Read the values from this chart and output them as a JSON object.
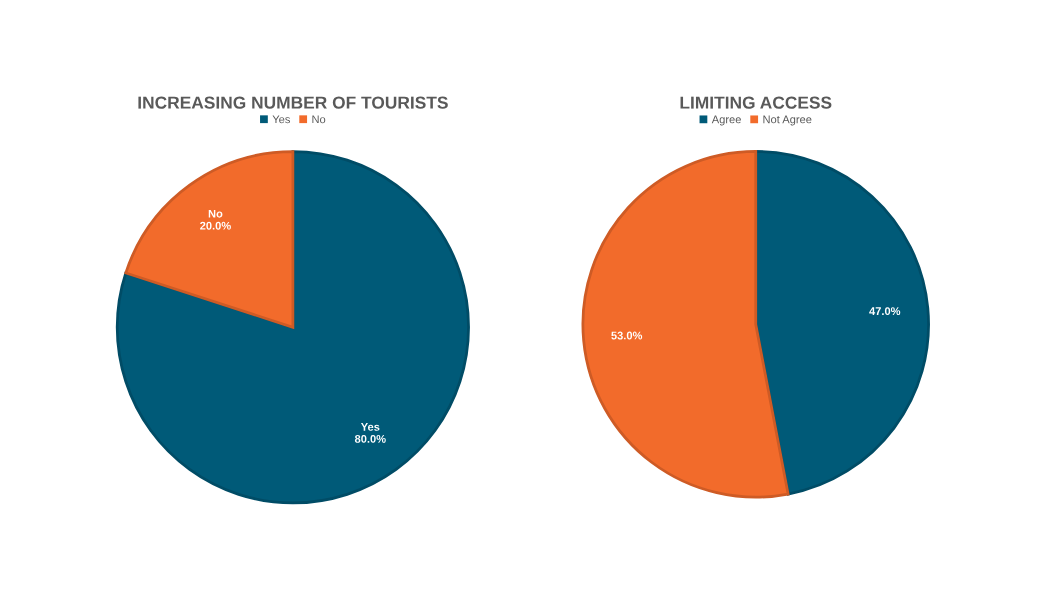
{
  "chart_data": [
    {
      "type": "pie",
      "title": "INCREASING NUMBER OF TOURISTS",
      "categories": [
        "Yes",
        "No"
      ],
      "values": [
        80,
        20
      ],
      "colors": [
        "#005a78",
        "#f26b2b"
      ],
      "value_labels": [
        "Yes\n80.0%",
        "No\n20.0%"
      ],
      "legend": "top"
    },
    {
      "type": "pie",
      "title": "LIMITING ACCESS",
      "categories": [
        "Agree",
        "Not Agree"
      ],
      "values": [
        47,
        53
      ],
      "colors": [
        "#005a78",
        "#f26b2b"
      ],
      "value_labels": [
        "47.0%",
        "53.0%"
      ],
      "legend": "top"
    }
  ]
}
